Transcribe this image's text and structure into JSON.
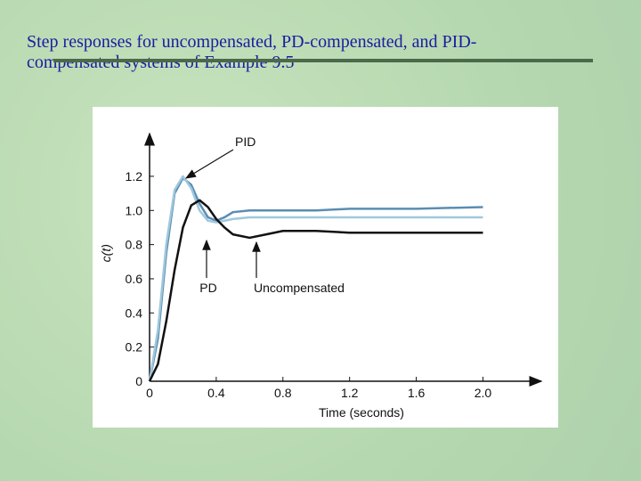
{
  "chart_data": {
    "type": "line",
    "title": [
      "Step responses for uncompensated, PD-compensated,  and PID-",
      "compensated systems of Example 9.5"
    ],
    "x_label": "Time (seconds)",
    "y_label": "c(t)",
    "x": [
      0,
      0.05,
      0.1,
      0.15,
      0.2,
      0.25,
      0.3,
      0.35,
      0.4,
      0.45,
      0.5,
      0.6,
      0.7,
      0.8,
      1.0,
      1.2,
      1.6,
      2.0
    ],
    "series": [
      {
        "name": "PID",
        "color": "#5b8db2",
        "values": [
          0,
          0.25,
          0.75,
          1.1,
          1.19,
          1.15,
          1.04,
          0.96,
          0.94,
          0.96,
          0.99,
          1.0,
          1.0,
          1.0,
          1.0,
          1.01,
          1.01,
          1.02
        ]
      },
      {
        "name": "PD",
        "color": "#a0c8dc",
        "values": [
          0,
          0.3,
          0.8,
          1.12,
          1.2,
          1.13,
          1.0,
          0.94,
          0.93,
          0.94,
          0.95,
          0.96,
          0.96,
          0.96,
          0.96,
          0.96,
          0.96,
          0.96
        ]
      },
      {
        "name": "Uncompensated",
        "color": "#111111",
        "values": [
          0,
          0.1,
          0.35,
          0.65,
          0.9,
          1.03,
          1.06,
          1.02,
          0.95,
          0.9,
          0.86,
          0.84,
          0.86,
          0.88,
          0.88,
          0.87,
          0.87,
          0.87
        ]
      }
    ],
    "xlim": [
      0,
      2.35
    ],
    "ylim": [
      0,
      1.45
    ],
    "xticks": [
      0,
      0.4,
      0.8,
      1.2,
      1.6,
      {
        "value": 2,
        "label": "2.0"
      }
    ],
    "yticks": [
      0,
      0.2,
      0.4,
      0.6,
      0.8,
      {
        "value": 1,
        "label": "1.0"
      },
      1.2
    ],
    "annotations": [
      {
        "text": "PID"
      },
      {
        "text": "PD"
      },
      {
        "text": "Uncompensated"
      }
    ]
  }
}
